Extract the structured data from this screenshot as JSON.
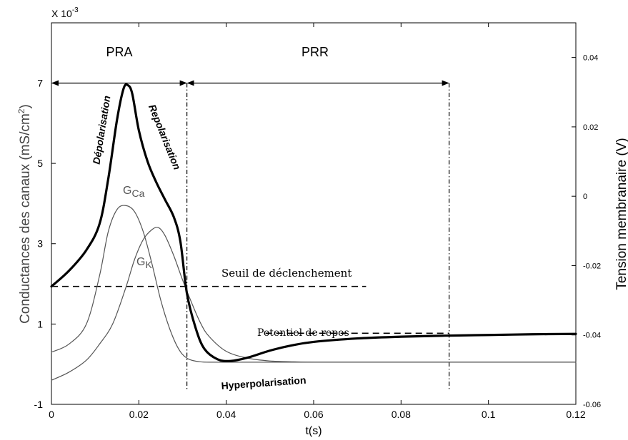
{
  "chart_data": {
    "type": "line",
    "xlabel": "t(s)",
    "ylabel_left": "Conductances des canaux (mS/cm²)",
    "ylabel_left_main": "Conductances des canaux (mS/cm",
    "ylabel_left_sup": "2",
    "ylabel_left_close": ")",
    "ylabel_right": "Tension membranaire (V)",
    "left_multiplier_base": "X 10",
    "left_multiplier_exp": "-3",
    "xlim": [
      0,
      0.12
    ],
    "ylim_left": [
      -1,
      8.5
    ],
    "ylim_right": [
      -0.06,
      0.05
    ],
    "x_ticks": [
      {
        "value": 0,
        "label": "0"
      },
      {
        "value": 0.02,
        "label": "0.02"
      },
      {
        "value": 0.04,
        "label": "0.04"
      },
      {
        "value": 0.06,
        "label": "0.06"
      },
      {
        "value": 0.08,
        "label": "0.08"
      },
      {
        "value": 0.1,
        "label": "0.1"
      },
      {
        "value": 0.12,
        "label": "0.12"
      }
    ],
    "y_left_ticks": [
      {
        "value": -1,
        "label": "-1"
      },
      {
        "value": 1,
        "label": "1"
      },
      {
        "value": 3,
        "label": "3"
      },
      {
        "value": 5,
        "label": "5"
      },
      {
        "value": 7,
        "label": "7"
      }
    ],
    "y_right_ticks": [
      {
        "value": -0.06,
        "label": "-0.06"
      },
      {
        "value": -0.04,
        "label": "-0.04"
      },
      {
        "value": -0.02,
        "label": "-0.02"
      },
      {
        "value": 0,
        "label": "0"
      },
      {
        "value": 0.02,
        "label": "0.02"
      },
      {
        "value": 0.04,
        "label": "0.04"
      }
    ],
    "series": [
      {
        "name": "membrane-potential",
        "axis": "right",
        "style": "thick",
        "color": "#000000",
        "x": [
          0,
          0.004,
          0.008,
          0.011,
          0.013,
          0.015,
          0.0165,
          0.0175,
          0.0185,
          0.02,
          0.022,
          0.024,
          0.026,
          0.028,
          0.0295,
          0.031,
          0.033,
          0.035,
          0.038,
          0.041,
          0.045,
          0.05,
          0.055,
          0.06,
          0.07,
          0.08,
          0.09,
          0.1,
          0.11,
          0.12
        ],
        "y": [
          -0.026,
          -0.0215,
          -0.0155,
          -0.008,
          0.005,
          0.022,
          0.031,
          0.032,
          0.0295,
          0.019,
          0.01,
          0.004,
          -0.001,
          -0.006,
          -0.013,
          -0.028,
          -0.038,
          -0.044,
          -0.047,
          -0.0475,
          -0.0465,
          -0.0445,
          -0.043,
          -0.042,
          -0.041,
          -0.0405,
          -0.0402,
          -0.04,
          -0.0398,
          -0.0397
        ]
      },
      {
        "name": "GCa",
        "axis": "left",
        "style": "thin",
        "color": "#555555",
        "x": [
          0,
          0.004,
          0.008,
          0.011,
          0.013,
          0.015,
          0.017,
          0.019,
          0.021,
          0.023,
          0.025,
          0.027,
          0.029,
          0.031,
          0.034,
          0.038,
          0.045,
          0.06,
          0.08,
          0.1,
          0.12
        ],
        "y": [
          0.3,
          0.5,
          1.0,
          2.2,
          3.3,
          3.85,
          3.95,
          3.8,
          3.3,
          2.5,
          1.6,
          0.9,
          0.4,
          0.15,
          0.06,
          0.05,
          0.05,
          0.05,
          0.05,
          0.05,
          0.05
        ]
      },
      {
        "name": "GK",
        "axis": "left",
        "style": "thin",
        "color": "#555555",
        "x": [
          0,
          0.004,
          0.008,
          0.011,
          0.014,
          0.017,
          0.019,
          0.021,
          0.023,
          0.0245,
          0.026,
          0.028,
          0.03,
          0.032,
          0.034,
          0.036,
          0.04,
          0.045,
          0.05,
          0.055,
          0.06,
          0.07,
          0.08,
          0.1,
          0.12
        ],
        "y": [
          -0.4,
          -0.2,
          0.1,
          0.5,
          1.0,
          1.9,
          2.6,
          3.1,
          3.35,
          3.4,
          3.2,
          2.7,
          2.1,
          1.55,
          1.05,
          0.7,
          0.32,
          0.15,
          0.08,
          0.06,
          0.05,
          0.05,
          0.05,
          0.05,
          0.05
        ]
      }
    ],
    "annotations": {
      "pra_label": "PRA",
      "prr_label": "PRR",
      "gca_label_main": "G",
      "gca_label_sub": "Ca",
      "gk_label_main": "G",
      "gk_label_sub": "K",
      "depolarisation": "Dépolarisation",
      "repolarisation": "Repolarisation",
      "hyperpolarisation": "Hyperpolarisation",
      "seuil": "Seuil de déclenchement",
      "repos": "Potentiel de repos"
    },
    "reference_lines": {
      "seuil_value": -0.026,
      "seuil_x_range": [
        0,
        0.072
      ],
      "repos_value": -0.0395,
      "repos_x_range": [
        0.049,
        0.091
      ],
      "vertical_lines": [
        0.031,
        0.091
      ],
      "arrow_level": 7,
      "pra_range": [
        0,
        0.031
      ],
      "prr_range": [
        0.031,
        0.091
      ]
    },
    "grid": false
  }
}
